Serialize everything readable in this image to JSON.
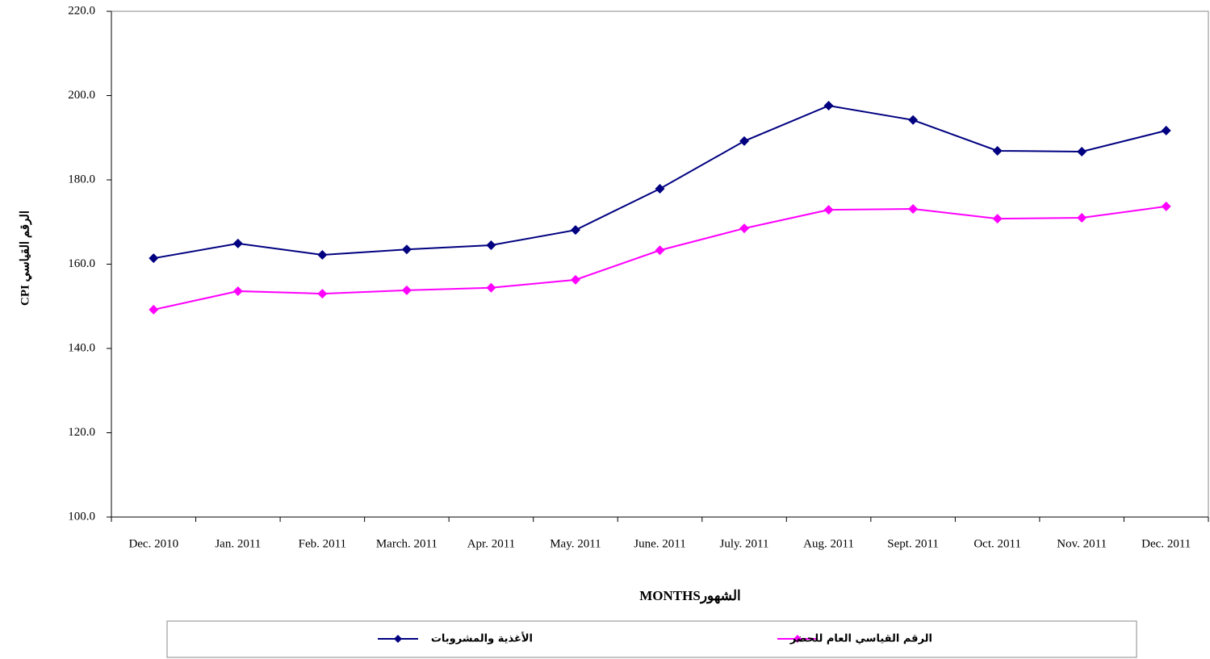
{
  "chart_data": {
    "type": "line",
    "x_label": "MONTHSالشهور",
    "y_label": "CPI الرقم القياسي",
    "categories": [
      "Dec. 2010",
      "Jan. 2011",
      "Feb. 2011",
      "March. 2011",
      "Apr. 2011",
      "May. 2011",
      "June. 2011",
      "July. 2011",
      "Aug. 2011",
      "Sept. 2011",
      "Oct. 2011",
      "Nov. 2011",
      "Dec. 2011"
    ],
    "series": [
      {
        "name": "الأغذية والمشروبات",
        "color": "#000080",
        "values": [
          161.4,
          164.9,
          162.2,
          163.5,
          164.5,
          168.1,
          177.9,
          189.2,
          197.6,
          194.2,
          186.9,
          186.7,
          191.7
        ]
      },
      {
        "name": "الرقم القياسي العام للحضر",
        "color": "#ff00ff",
        "values": [
          149.2,
          153.6,
          153.0,
          153.8,
          154.4,
          156.3,
          163.3,
          168.5,
          172.9,
          173.1,
          170.8,
          171.0,
          173.7
        ]
      }
    ],
    "ylim": [
      100,
      220
    ],
    "yticks": [
      {
        "value": 100,
        "label": "100.0"
      },
      {
        "value": 120,
        "label": "120.0"
      },
      {
        "value": 140,
        "label": "140.0"
      },
      {
        "value": 160,
        "label": "160.0"
      },
      {
        "value": 180,
        "label": "180.0"
      },
      {
        "value": 200,
        "label": "200.0"
      },
      {
        "value": 220,
        "label": "220.0"
      }
    ],
    "grid": false
  }
}
